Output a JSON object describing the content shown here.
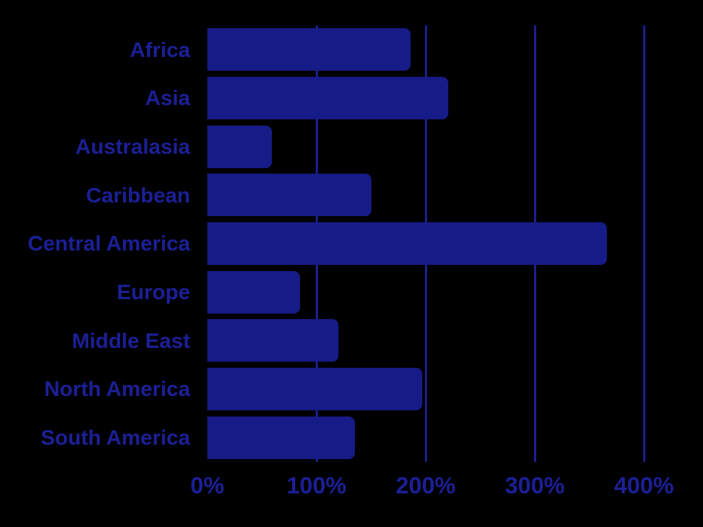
{
  "page": {
    "background_color": "#000000"
  },
  "chart_data": {
    "type": "bar",
    "orientation": "horizontal",
    "title": "",
    "xlabel": "",
    "ylabel": "",
    "categories": [
      "Africa",
      "Asia",
      "Australasia",
      "Caribbean",
      "Central America",
      "Europe",
      "Middle East",
      "North America",
      "South America"
    ],
    "values": [
      186,
      221,
      59,
      150,
      366,
      85,
      120,
      197,
      135
    ],
    "value_unit": "%",
    "xlim": [
      0,
      400
    ],
    "xticks": [
      {
        "value": 0,
        "label": "0%"
      },
      {
        "value": 100,
        "label": "100%"
      },
      {
        "value": 200,
        "label": "200%"
      },
      {
        "value": 300,
        "label": "300%"
      },
      {
        "value": 400,
        "label": "400%"
      }
    ],
    "grid": "vertical-only",
    "legend": "none",
    "colors": {
      "bar": "#171b87",
      "gridline": "#1c2098",
      "text": "#1c1f96",
      "background": "#000000"
    }
  }
}
